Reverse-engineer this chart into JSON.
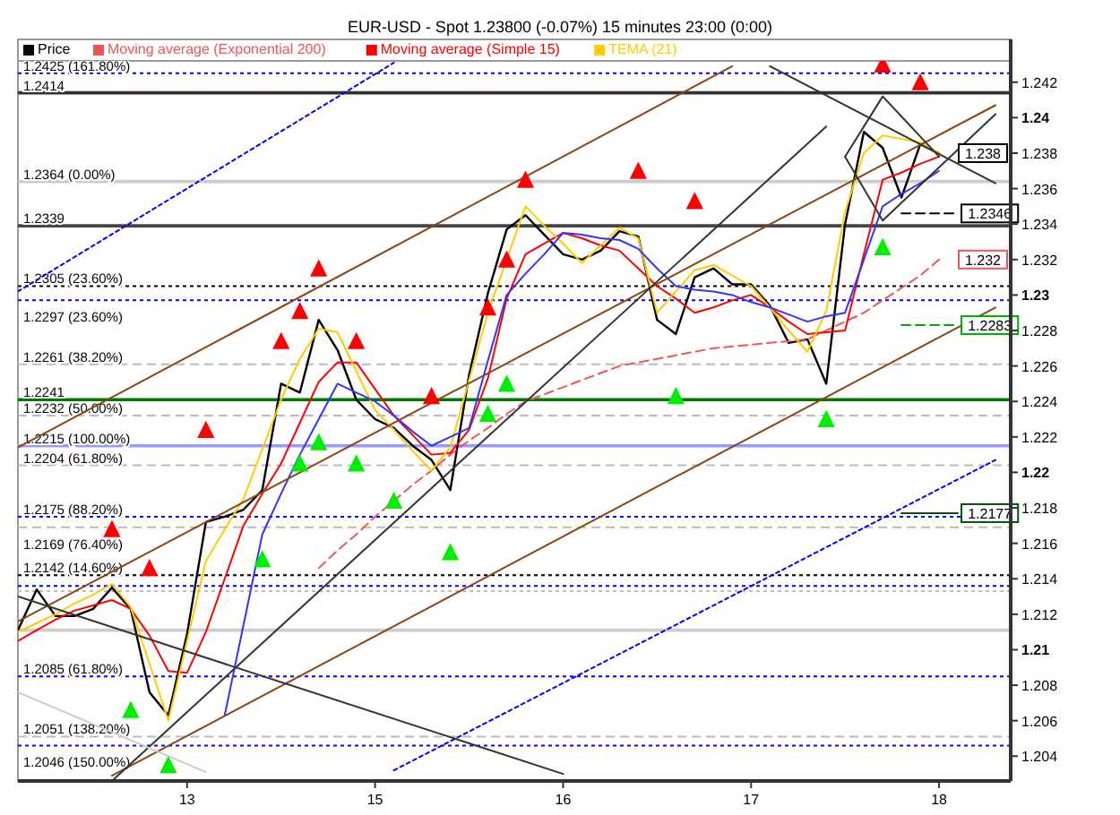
{
  "chart_data": {
    "type": "line",
    "title": "EUR-USD - Spot    1.23800 (-0.07%)    15 minutes  23:00 (0:00)",
    "categories": [
      null,
      null,
      null,
      null,
      null,
      null,
      null,
      null,
      null,
      "13",
      null,
      null,
      null,
      null,
      null,
      null,
      null,
      null,
      null,
      "15",
      null,
      null,
      null,
      null,
      null,
      null,
      null,
      null,
      null,
      "16",
      null,
      null,
      null,
      null,
      null,
      null,
      null,
      null,
      null,
      "17",
      null,
      null,
      null,
      null,
      null,
      null,
      null,
      null,
      null,
      "18",
      null,
      null,
      null
    ],
    "ylim": [
      1.2026,
      1.2432
    ],
    "yticks": [
      1.204,
      1.206,
      1.208,
      1.21,
      1.212,
      1.214,
      1.216,
      1.218,
      1.22,
      1.222,
      1.224,
      1.226,
      1.228,
      1.23,
      1.232,
      1.234,
      1.236,
      1.238,
      1.24,
      1.242
    ],
    "legend": "top left",
    "series": [
      {
        "name": "Price",
        "color": "#000000",
        "values": [
          1.2111,
          1.2134,
          1.2119,
          1.2119,
          1.2123,
          1.2135,
          1.2123,
          1.2076,
          1.2063,
          1.2109,
          1.2172,
          1.2175,
          1.2179,
          1.219,
          1.225,
          1.2245,
          1.2286,
          1.2269,
          1.2241,
          1.223,
          1.2225,
          1.2215,
          1.2207,
          1.219,
          1.2255,
          1.2301,
          1.2337,
          1.2345,
          1.2334,
          1.2323,
          1.232,
          1.2325,
          1.2336,
          1.2333,
          1.2286,
          1.2278,
          1.231,
          1.2315,
          1.2306,
          1.2306,
          1.2294,
          1.2273,
          1.2275,
          1.225,
          1.234,
          1.2392,
          1.2383,
          1.2355,
          1.2385,
          1.238,
          null,
          null,
          null
        ],
        "value_labels": [
          null,
          null,
          null,
          null,
          null,
          null,
          null,
          null,
          null,
          null,
          null,
          null,
          null,
          null,
          null,
          null,
          null,
          null,
          null,
          null,
          null,
          null,
          null,
          null,
          null,
          null,
          null,
          null,
          null,
          null,
          null,
          null,
          null,
          null,
          null,
          null,
          null,
          null,
          null,
          null,
          null,
          null,
          null,
          null,
          null,
          null,
          null,
          null,
          null,
          "1.238",
          null,
          null,
          null
        ]
      },
      {
        "name": "Moving average (Exponential 200)",
        "color": "#ee5555",
        "line_style": "dashed",
        "values": [
          null,
          null,
          null,
          null,
          null,
          null,
          null,
          null,
          null,
          null,
          null,
          null,
          null,
          null,
          null,
          null,
          1.2146,
          1.2156,
          1.2165,
          1.2175,
          1.2184,
          1.2193,
          1.2201,
          1.221,
          1.2218,
          1.2225,
          1.2233,
          1.224,
          1.2244,
          1.2248,
          1.2252,
          1.2256,
          1.226,
          1.2262,
          1.2264,
          1.2266,
          1.2268,
          1.227,
          1.2271,
          1.2272,
          1.2273,
          1.2274,
          1.2275,
          1.228,
          1.2285,
          1.229,
          1.2297,
          1.2304,
          1.2311,
          1.232,
          null,
          null,
          null
        ],
        "value_labels": [
          null,
          null,
          null,
          null,
          null,
          null,
          null,
          null,
          null,
          null,
          null,
          null,
          null,
          null,
          null,
          null,
          null,
          null,
          null,
          null,
          null,
          null,
          null,
          null,
          null,
          null,
          null,
          null,
          null,
          null,
          null,
          null,
          null,
          null,
          null,
          null,
          null,
          null,
          null,
          null,
          null,
          null,
          null,
          null,
          null,
          null,
          null,
          null,
          null,
          "1.232",
          null,
          null,
          null
        ]
      },
      {
        "name": "Moving average (Simple 15)",
        "color": "#ff0000",
        "values": [
          1.2105,
          1.2111,
          1.2117,
          1.2122,
          1.2125,
          1.2128,
          1.2123,
          1.2108,
          1.2088,
          1.2087,
          1.211,
          1.214,
          1.217,
          1.2188,
          1.2205,
          1.2228,
          1.2251,
          1.2262,
          1.2262,
          1.2247,
          1.2232,
          1.2221,
          1.221,
          1.2211,
          1.2224,
          1.2253,
          1.2298,
          1.2323,
          1.2329,
          1.2335,
          1.2332,
          1.2328,
          1.2325,
          1.2315,
          1.2305,
          1.2298,
          1.229,
          1.2293,
          1.2297,
          1.23,
          1.2293,
          1.2285,
          1.2278,
          1.2279,
          1.228,
          1.2323,
          1.2365,
          1.2369,
          1.2374,
          1.2378,
          null,
          null,
          null
        ]
      },
      {
        "name": "TEMA (21)",
        "color": "#ffcc00",
        "values": [
          1.211,
          1.2115,
          1.212,
          1.2126,
          1.2131,
          1.2137,
          1.2124,
          1.2092,
          1.206,
          1.2105,
          1.215,
          1.2168,
          1.2185,
          1.2213,
          1.2241,
          1.2264,
          1.2281,
          1.2279,
          1.2257,
          1.2235,
          1.2224,
          1.2212,
          1.2201,
          1.2214,
          1.2252,
          1.229,
          1.232,
          1.235,
          1.2339,
          1.2329,
          1.2318,
          1.2328,
          1.2338,
          1.2332,
          1.229,
          1.2302,
          1.2314,
          1.2317,
          1.2311,
          1.2305,
          1.2293,
          1.228,
          1.2268,
          1.2291,
          1.2347,
          1.238,
          1.239,
          1.2388,
          1.2386,
          1.238,
          null,
          null,
          null
        ]
      },
      {
        "color": "#3333ff",
        "values": [
          null,
          null,
          null,
          null,
          null,
          null,
          null,
          null,
          null,
          null,
          null,
          1.2063,
          1.2114,
          1.2165,
          1.2188,
          1.221,
          1.223,
          1.225,
          1.2245,
          1.224,
          1.2232,
          1.2223,
          1.2215,
          1.222,
          1.2225,
          1.2263,
          1.23,
          1.2312,
          1.2323,
          1.2335,
          1.2334,
          1.2332,
          1.2331,
          1.2326,
          1.2315,
          1.2305,
          1.2303,
          1.2302,
          1.23,
          1.2296,
          1.2293,
          1.2289,
          1.2285,
          1.2288,
          1.229,
          1.232,
          1.235,
          1.2357,
          1.2363,
          1.237,
          null,
          null,
          null
        ]
      },
      {
        "color": "#8b4513",
        "values": [
          1.2214,
          null,
          null,
          null,
          null,
          null,
          null,
          null,
          null,
          null,
          null,
          null,
          null,
          null,
          null,
          null,
          null,
          null,
          null,
          null,
          null,
          null,
          null,
          null,
          null,
          null,
          null,
          null,
          null,
          null,
          null,
          null,
          null,
          null,
          null,
          null,
          null,
          null,
          1.2429,
          null,
          null,
          null,
          null,
          null,
          null,
          null,
          null,
          null,
          null,
          null,
          null,
          null,
          null
        ]
      },
      {
        "color": "#8b4513",
        "values": [
          1.2116,
          null,
          null,
          null,
          null,
          null,
          null,
          null,
          null,
          null,
          null,
          null,
          null,
          null,
          null,
          null,
          null,
          null,
          null,
          null,
          null,
          null,
          null,
          null,
          null,
          null,
          null,
          null,
          null,
          null,
          null,
          null,
          null,
          null,
          null,
          null,
          null,
          null,
          null,
          null,
          null,
          null,
          null,
          null,
          null,
          null,
          null,
          null,
          null,
          null,
          null,
          null,
          1.2407
        ]
      },
      {
        "color": "#8b4513",
        "values": [
          null,
          null,
          null,
          null,
          null,
          1.2029,
          null,
          null,
          null,
          null,
          null,
          null,
          null,
          null,
          null,
          null,
          null,
          null,
          null,
          null,
          null,
          null,
          null,
          null,
          null,
          null,
          null,
          null,
          null,
          null,
          null,
          null,
          null,
          null,
          null,
          null,
          null,
          null,
          null,
          null,
          null,
          null,
          null,
          null,
          null,
          null,
          null,
          null,
          null,
          null,
          null,
          null,
          1.2293
        ]
      },
      {
        "color": "#0000ff",
        "line_style": "dotted",
        "values": [
          1.2302,
          null,
          null,
          null,
          null,
          null,
          null,
          null,
          null,
          null,
          null,
          null,
          null,
          null,
          null,
          null,
          null,
          null,
          null,
          null,
          1.2431,
          null,
          null,
          null,
          null,
          null,
          null,
          null,
          null,
          null,
          null,
          null,
          null,
          null,
          null,
          null,
          null,
          null,
          null,
          null,
          null,
          null,
          null,
          null,
          null,
          null,
          null,
          null,
          null,
          null,
          null,
          null,
          null
        ]
      },
      {
        "color": "#0000ff",
        "line_style": "dotted",
        "values": [
          null,
          null,
          null,
          null,
          null,
          null,
          null,
          null,
          null,
          null,
          null,
          null,
          null,
          null,
          null,
          null,
          null,
          null,
          null,
          null,
          1.2032,
          null,
          null,
          null,
          null,
          null,
          null,
          null,
          null,
          null,
          null,
          null,
          null,
          null,
          null,
          null,
          null,
          null,
          null,
          null,
          null,
          null,
          null,
          null,
          null,
          null,
          null,
          null,
          null,
          null,
          null,
          null,
          1.2207
        ]
      },
      {
        "color": "#333333",
        "values": [
          null,
          null,
          null,
          null,
          null,
          1.2026,
          null,
          null,
          null,
          null,
          null,
          null,
          null,
          null,
          null,
          null,
          null,
          null,
          null,
          null,
          null,
          null,
          null,
          null,
          null,
          null,
          null,
          null,
          null,
          null,
          null,
          null,
          null,
          null,
          null,
          null,
          null,
          null,
          null,
          null,
          null,
          null,
          null,
          1.2395,
          null,
          null,
          null,
          null,
          null,
          null,
          null,
          null,
          null
        ]
      },
      {
        "color": "#333333",
        "values": [
          1.213,
          null,
          null,
          null,
          null,
          null,
          null,
          null,
          null,
          null,
          null,
          null,
          null,
          null,
          null,
          null,
          null,
          null,
          null,
          null,
          null,
          null,
          null,
          null,
          null,
          null,
          null,
          null,
          null,
          1.203,
          null,
          null,
          null,
          null,
          null,
          null,
          null,
          null,
          null,
          null,
          null,
          null,
          null,
          null,
          null,
          null,
          null,
          null,
          null,
          null,
          null,
          null,
          null
        ]
      },
      {
        "color": "#cccccc",
        "values": [
          1.2076,
          null,
          null,
          null,
          null,
          null,
          null,
          null,
          null,
          null,
          1.2031,
          null,
          null,
          null,
          null,
          null,
          null,
          null,
          null,
          null,
          null,
          null,
          null,
          null,
          null,
          null,
          null,
          null,
          null,
          null,
          null,
          null,
          null,
          null,
          null,
          null,
          null,
          null,
          null,
          null,
          null,
          null,
          null,
          null,
          null,
          null,
          null,
          null,
          null,
          null,
          null,
          null,
          null
        ]
      },
      {
        "color": "#333333",
        "values": [
          null,
          null,
          null,
          null,
          null,
          null,
          null,
          null,
          null,
          null,
          null,
          null,
          null,
          null,
          null,
          null,
          null,
          null,
          null,
          null,
          null,
          null,
          null,
          null,
          null,
          null,
          null,
          null,
          null,
          null,
          null,
          null,
          null,
          null,
          null,
          null,
          null,
          null,
          null,
          null,
          1.2429,
          null,
          null,
          null,
          null,
          null,
          null,
          null,
          null,
          null,
          null,
          null,
          1.2363
        ]
      },
      {
        "color": "#333333",
        "values": [
          null,
          null,
          null,
          null,
          null,
          null,
          null,
          null,
          null,
          null,
          null,
          null,
          null,
          null,
          null,
          null,
          null,
          null,
          null,
          null,
          null,
          null,
          null,
          null,
          null,
          null,
          null,
          null,
          null,
          null,
          null,
          null,
          null,
          null,
          null,
          null,
          null,
          null,
          null,
          null,
          null,
          null,
          null,
          null,
          1.2378,
          null,
          1.2412,
          null,
          null,
          1.2378,
          null,
          null,
          null
        ]
      },
      {
        "color": "#333333",
        "values": [
          null,
          null,
          null,
          null,
          null,
          null,
          null,
          null,
          null,
          null,
          null,
          null,
          null,
          null,
          null,
          null,
          null,
          null,
          null,
          null,
          null,
          null,
          null,
          null,
          null,
          null,
          null,
          null,
          null,
          null,
          null,
          null,
          null,
          null,
          null,
          null,
          null,
          null,
          null,
          null,
          null,
          null,
          null,
          null,
          1.2378,
          null,
          1.2342,
          null,
          null,
          null,
          null,
          null,
          1.2402
        ]
      },
      {
        "color": "#000000",
        "line_style": "dashed",
        "values": [
          null,
          null,
          null,
          null,
          null,
          null,
          null,
          null,
          null,
          null,
          null,
          null,
          null,
          null,
          null,
          null,
          null,
          null,
          null,
          null,
          null,
          null,
          null,
          null,
          null,
          null,
          null,
          null,
          null,
          null,
          null,
          null,
          null,
          null,
          null,
          null,
          null,
          null,
          null,
          null,
          null,
          null,
          null,
          null,
          null,
          null,
          null,
          1.2346,
          1.2346,
          1.2346,
          1.2346,
          null,
          null
        ],
        "value_labels": [
          null,
          null,
          null,
          null,
          null,
          null,
          null,
          null,
          null,
          null,
          null,
          null,
          null,
          null,
          null,
          null,
          null,
          null,
          null,
          null,
          null,
          null,
          null,
          null,
          null,
          null,
          null,
          null,
          null,
          null,
          null,
          null,
          null,
          null,
          null,
          null,
          null,
          null,
          null,
          null,
          null,
          null,
          null,
          null,
          null,
          null,
          null,
          null,
          null,
          null,
          "1.2346",
          null,
          null
        ]
      },
      {
        "color": "#00aa00",
        "line_style": "dashed",
        "values": [
          null,
          null,
          null,
          null,
          null,
          null,
          null,
          null,
          null,
          null,
          null,
          null,
          null,
          null,
          null,
          null,
          null,
          null,
          null,
          null,
          null,
          null,
          null,
          null,
          null,
          null,
          null,
          null,
          null,
          null,
          null,
          null,
          null,
          null,
          null,
          null,
          null,
          null,
          null,
          null,
          null,
          null,
          null,
          null,
          null,
          null,
          null,
          1.2283,
          1.2283,
          1.2283,
          1.2283,
          null,
          null
        ],
        "value_labels": [
          null,
          null,
          null,
          null,
          null,
          null,
          null,
          null,
          null,
          null,
          null,
          null,
          null,
          null,
          null,
          null,
          null,
          null,
          null,
          null,
          null,
          null,
          null,
          null,
          null,
          null,
          null,
          null,
          null,
          null,
          null,
          null,
          null,
          null,
          null,
          null,
          null,
          null,
          null,
          null,
          null,
          null,
          null,
          null,
          null,
          null,
          null,
          null,
          null,
          null,
          "1.2283",
          null,
          null
        ]
      },
      {
        "color": "#005500",
        "values": [
          null,
          null,
          null,
          null,
          null,
          null,
          null,
          null,
          null,
          null,
          null,
          null,
          null,
          null,
          null,
          null,
          null,
          null,
          null,
          null,
          null,
          null,
          null,
          null,
          null,
          null,
          null,
          null,
          null,
          null,
          null,
          null,
          null,
          null,
          null,
          null,
          null,
          null,
          null,
          null,
          null,
          null,
          null,
          null,
          null,
          null,
          null,
          1.2177,
          1.2177,
          1.2177,
          1.2177,
          null,
          null
        ],
        "value_labels": [
          null,
          null,
          null,
          null,
          null,
          null,
          null,
          null,
          null,
          null,
          null,
          null,
          null,
          null,
          null,
          null,
          null,
          null,
          null,
          null,
          null,
          null,
          null,
          null,
          null,
          null,
          null,
          null,
          null,
          null,
          null,
          null,
          null,
          null,
          null,
          null,
          null,
          null,
          null,
          null,
          null,
          null,
          null,
          null,
          null,
          null,
          null,
          null,
          null,
          null,
          "1.2177",
          null,
          null
        ]
      },
      {
        "type": "scatter",
        "marker": "triangle",
        "color": "#ff0000",
        "values": [
          null,
          null,
          null,
          null,
          null,
          1.2167,
          null,
          1.2145,
          null,
          null,
          1.2223,
          null,
          null,
          null,
          1.2273,
          1.229,
          1.2314,
          null,
          1.2273,
          null,
          null,
          null,
          1.2242,
          null,
          null,
          1.2292,
          1.2319,
          1.2364,
          null,
          null,
          null,
          null,
          null,
          1.2369,
          null,
          null,
          1.2352,
          null,
          null,
          null,
          null,
          null,
          null,
          null,
          null,
          null,
          1.2429,
          null,
          1.2419,
          null,
          null,
          null,
          null
        ]
      },
      {
        "type": "scatter",
        "marker": "triangle",
        "color": "#00ee00",
        "values": [
          null,
          null,
          null,
          null,
          null,
          null,
          1.2065,
          null,
          1.2034,
          null,
          null,
          null,
          null,
          1.215,
          null,
          1.2204,
          1.2216,
          null,
          1.2204,
          null,
          1.2183,
          null,
          null,
          1.2154,
          null,
          1.2232,
          1.2249,
          null,
          null,
          null,
          null,
          null,
          null,
          null,
          null,
          1.2242,
          null,
          null,
          null,
          null,
          null,
          null,
          null,
          1.2229,
          null,
          null,
          1.2326,
          null,
          null,
          null,
          null,
          null,
          null
        ]
      }
    ],
    "ref_lines": [
      {
        "axis": "y",
        "value": 1.2425,
        "label": "1.2425 (161.80%)",
        "color": "#0000ff",
        "line_style": "dotted"
      },
      {
        "axis": "y",
        "value": 1.2414,
        "label": "1.2414",
        "color": "#333333",
        "line_style": "solid"
      },
      {
        "axis": "y",
        "value": 1.2364,
        "label": "1.2364 (0.00%)",
        "color": "#cccccc",
        "line_style": "solid"
      },
      {
        "axis": "y",
        "value": 1.2339,
        "label": "1.2339",
        "color": "#444444",
        "line_style": "solid"
      },
      {
        "axis": "y",
        "value": 1.2305,
        "label": "1.2305 (23.60%)",
        "color": "#000000",
        "line_style": "dotted"
      },
      {
        "axis": "y",
        "value": 1.2297,
        "label": "1.2297 (23.60%)",
        "color": "#0000ff",
        "line_style": "dotted"
      },
      {
        "axis": "y",
        "value": 1.2261,
        "label": "1.2261 (38.20%)",
        "color": "#bbbbbb",
        "line_style": "dashed"
      },
      {
        "axis": "y",
        "value": 1.2241,
        "label": "1.2241",
        "color": "#007700",
        "line_style": "solid"
      },
      {
        "axis": "y",
        "value": 1.2232,
        "label": "1.2232 (50.00%)",
        "color": "#bbbbbb",
        "line_style": "dashed"
      },
      {
        "axis": "y",
        "value": 1.2215,
        "label": "1.2215 (100.00%)",
        "color": "#9999ff",
        "line_style": "solid"
      },
      {
        "axis": "y",
        "value": 1.2204,
        "label": "1.2204 (61.80%)",
        "color": "#bbbbbb",
        "line_style": "dashed"
      },
      {
        "axis": "y",
        "value": 1.2175,
        "label": "1.2175 (88.20%)",
        "color": "#0000ff",
        "line_style": "dotted"
      },
      {
        "axis": "y",
        "value": 1.2169,
        "label": "1.2169 (76.40%)",
        "color": "#bbbbbb",
        "line_style": "dashed"
      },
      {
        "axis": "y",
        "value": 1.2142,
        "label": "1.2142 (14.60%)",
        "color": "#000000",
        "line_style": "dotted"
      },
      {
        "axis": "y",
        "value": 1.2136,
        "color": "#0000ff",
        "line_style": "dotted"
      },
      {
        "axis": "y",
        "value": 1.2133,
        "color": "#bbbbbb",
        "line_style": "dotted"
      },
      {
        "axis": "y",
        "value": 1.2111,
        "color": "#cccccc",
        "line_style": "solid"
      },
      {
        "axis": "y",
        "value": 1.2085,
        "label": "1.2085 (61.80%)",
        "color": "#0000ff",
        "line_style": "dotted"
      },
      {
        "axis": "y",
        "value": 1.2051,
        "label": "1.2051 (138.20%)",
        "color": "#bbbbbb",
        "line_style": "dashed"
      },
      {
        "axis": "y",
        "value": 1.2046,
        "label": "1.2046 (150.00%)",
        "color": "#0000ff",
        "line_style": "dotted"
      }
    ]
  }
}
